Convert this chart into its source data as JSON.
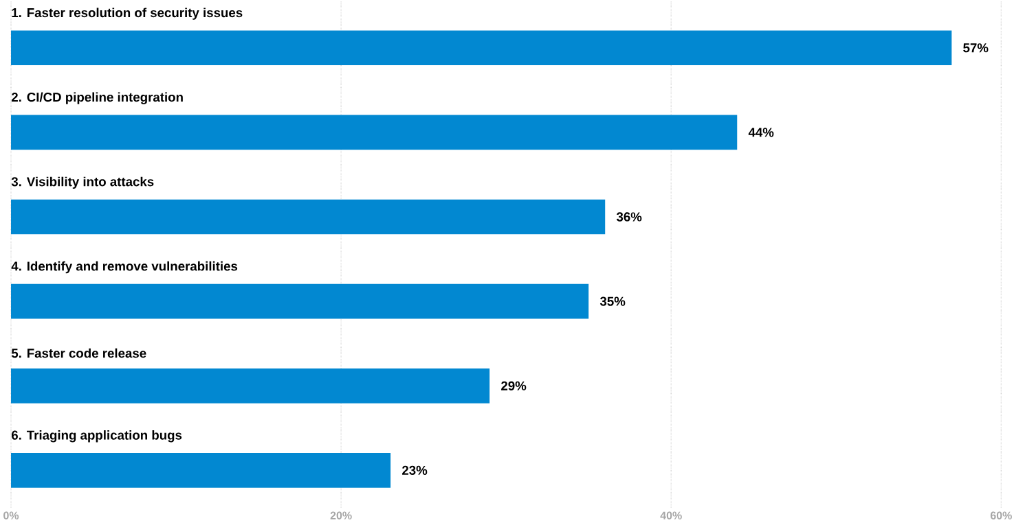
{
  "chart_data": {
    "type": "bar",
    "orientation": "horizontal",
    "categories": [
      "1. Faster resolution of security issues",
      "2. CI/CD pipeline integration",
      "3. Visibility into attacks",
      "4. Identify and remove vulnerabilities",
      "5. Faster code release",
      "6. Triaging application bugs"
    ],
    "values": [
      57,
      44,
      36,
      35,
      29,
      23
    ],
    "value_labels": [
      "57%",
      "44%",
      "36%",
      "35%",
      "29%",
      "23%"
    ],
    "color": "#0288d1",
    "xlim": [
      0,
      60
    ],
    "xticks": [
      {
        "value": 0,
        "label": "0%"
      },
      {
        "value": 20,
        "label": "20%"
      },
      {
        "value": 40,
        "label": "40%"
      },
      {
        "value": 60,
        "label": "60%"
      }
    ],
    "grid": "x",
    "legend": false
  }
}
